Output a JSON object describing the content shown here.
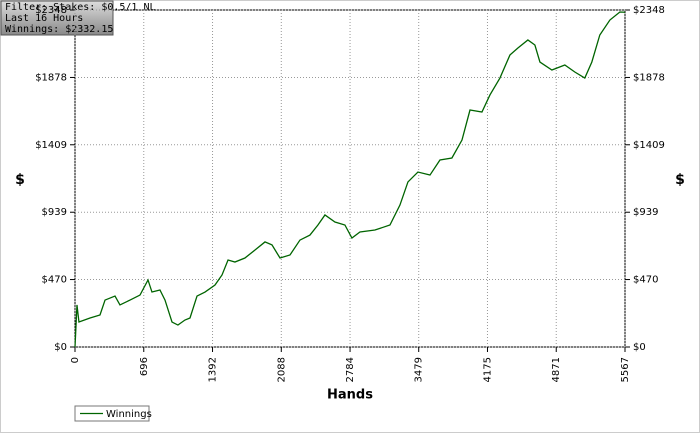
{
  "chart_data": {
    "type": "line",
    "info": [
      "Filter: Stakes: $0.5/1 NL",
      "Last  16 Hours",
      "Winnings: $2332.15"
    ],
    "x_label": "Hands",
    "y_label": "$",
    "y2_label": "$",
    "xlim": [
      0,
      5567
    ],
    "ylim": [
      0,
      2348
    ],
    "xticks": [
      0,
      696,
      1392,
      2088,
      2784,
      3479,
      4175,
      4871,
      5567
    ],
    "yticks": [
      {
        "value": 0,
        "label": "$0"
      },
      {
        "value": 470,
        "label": "$470"
      },
      {
        "value": 939,
        "label": "$939"
      },
      {
        "value": 1409,
        "label": "$1409"
      },
      {
        "value": 1878,
        "label": "$1878"
      },
      {
        "value": 2348,
        "label": "$2348"
      }
    ],
    "grid": true,
    "legend": "bottom-left",
    "series": [
      {
        "name": "Winnings",
        "color": "#006400",
        "x": [
          0,
          20,
          40,
          152,
          253,
          304,
          405,
          455,
          557,
          658,
          739,
          779,
          860,
          911,
          982,
          1042,
          1113,
          1164,
          1235,
          1316,
          1417,
          1488,
          1549,
          1619,
          1720,
          1822,
          1923,
          1994,
          2075,
          2176,
          2277,
          2378,
          2459,
          2530,
          2631,
          2732,
          2803,
          2884,
          3036,
          3188,
          3289,
          3370,
          3471,
          3593,
          3694,
          3815,
          3917,
          3998,
          4119,
          4200,
          4301,
          4402,
          4483,
          4584,
          4655,
          4706,
          4827,
          4958,
          5059,
          5160,
          5231,
          5312,
          5414,
          5515,
          5567
        ],
        "values": [
          0,
          293,
          174,
          202,
          223,
          327,
          355,
          293,
          327,
          362,
          467,
          383,
          397,
          327,
          174,
          153,
          188,
          202,
          355,
          383,
          432,
          502,
          606,
          592,
          620,
          676,
          732,
          711,
          620,
          641,
          745,
          780,
          850,
          920,
          871,
          850,
          759,
          801,
          815,
          850,
          989,
          1150,
          1219,
          1198,
          1303,
          1317,
          1442,
          1651,
          1637,
          1756,
          1874,
          2034,
          2083,
          2139,
          2104,
          1985,
          1930,
          1965,
          1916,
          1874,
          1985,
          2174,
          2278,
          2334,
          2332.15
        ]
      }
    ]
  }
}
